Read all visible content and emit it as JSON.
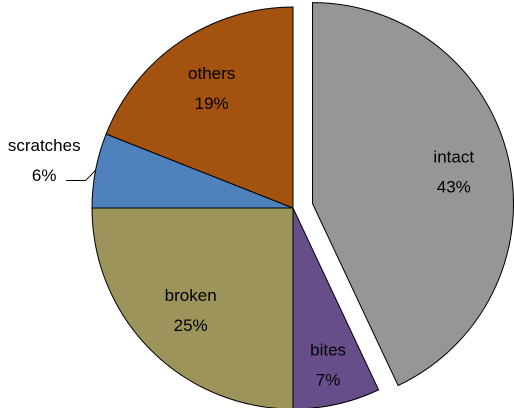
{
  "chart_data": {
    "type": "pie",
    "categories": [
      "intact",
      "bites",
      "broken",
      "scratches",
      "others"
    ],
    "values": [
      43,
      7,
      25,
      6,
      19
    ],
    "value_labels": [
      "43%",
      "7%",
      "25%",
      "6%",
      "19%"
    ],
    "colors": [
      "#969696",
      "#674e8a",
      "#9c945a",
      "#4f81bd",
      "#a4520f"
    ]
  }
}
